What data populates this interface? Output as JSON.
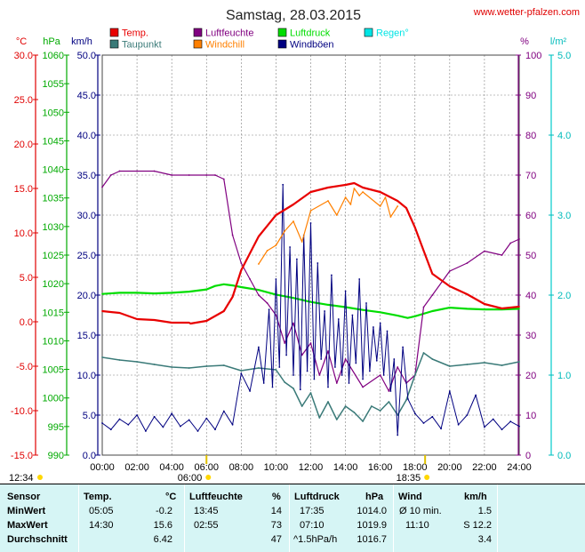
{
  "header": {
    "date_title": "Samstag, 28.03.2015",
    "site_link": "www.wetter-pfalzen.com"
  },
  "colors": {
    "temp": "#e80000",
    "taupunkt": "#3a7a78",
    "luftfeuchte": "#800080",
    "windchill": "#ff8000",
    "luftdruck": "#00dd00",
    "windboeen": "#000080",
    "regen": "#00e5e5",
    "grid": "#808080",
    "stats_bg": "#d6f5f5"
  },
  "chart_data": {
    "type": "line",
    "title": "Samstag, 28.03.2015",
    "x_unit": "hours",
    "x_range": [
      0,
      24
    ],
    "x_ticks": [
      "00:00",
      "02:00",
      "04:00",
      "06:00",
      "08:00",
      "10:00",
      "12:00",
      "14:00",
      "16:00",
      "18:00",
      "20:00",
      "22:00",
      "24:00"
    ],
    "grid": true,
    "legend_placement": "top",
    "axes": {
      "temp": {
        "unit": "°C",
        "range": [
          -15,
          30
        ],
        "ticks": [
          "30.0",
          "25.0",
          "20.0",
          "15.0",
          "10.0",
          "5.0",
          "0.0",
          "-5.0",
          "-10.0",
          "-15.0"
        ]
      },
      "pressure": {
        "unit": "hPa",
        "range": [
          990,
          1060
        ],
        "ticks": [
          "1060",
          "1055",
          "1050",
          "1045",
          "1040",
          "1035",
          "1030",
          "1025",
          "1020",
          "1015",
          "1010",
          "1005",
          "1000",
          "995",
          "990"
        ]
      },
      "wind": {
        "unit": "km/h",
        "range": [
          0,
          50
        ],
        "ticks": [
          "50.0",
          "45.0",
          "40.0",
          "35.0",
          "30.0",
          "25.0",
          "20.0",
          "15.0",
          "10.0",
          "5.0",
          "0.0"
        ]
      },
      "humidity": {
        "unit": "%",
        "range": [
          0,
          100
        ],
        "ticks": [
          "100",
          "90",
          "80",
          "70",
          "60",
          "50",
          "40",
          "30",
          "20",
          "10",
          "0"
        ]
      },
      "rain": {
        "unit": "l/m²",
        "range": [
          0,
          5
        ],
        "ticks": [
          "5.0",
          "4.0",
          "3.0",
          "2.0",
          "1.0",
          "0.0"
        ]
      }
    },
    "series": [
      {
        "name": "Temp.",
        "key": "temp",
        "axis": "temp",
        "x": [
          0,
          1,
          2,
          3,
          4,
          5,
          5.08,
          6,
          7,
          7.5,
          8,
          9,
          10,
          11,
          12,
          13,
          14,
          14.5,
          15,
          16,
          17,
          17.5,
          18,
          18.5,
          19,
          20,
          21,
          22,
          23,
          24
        ],
        "y": [
          1.2,
          1.0,
          0.3,
          0.2,
          -0.1,
          -0.1,
          -0.2,
          0.1,
          1.2,
          2.8,
          5.8,
          9.6,
          12.0,
          13.2,
          14.6,
          15.1,
          15.4,
          15.6,
          15.1,
          14.6,
          13.6,
          12.8,
          10.6,
          8.0,
          5.4,
          4.0,
          3.1,
          2.0,
          1.5,
          1.7
        ]
      },
      {
        "name": "Taupunkt",
        "key": "taupunkt",
        "axis": "temp",
        "x": [
          0,
          1,
          2,
          3,
          4,
          5,
          6,
          7,
          8,
          9,
          10,
          10.5,
          11,
          11.5,
          12,
          12.5,
          13,
          13.5,
          14,
          14.5,
          15,
          15.5,
          16,
          16.5,
          17,
          17.5,
          18,
          18.5,
          19,
          20,
          21,
          22,
          23,
          24
        ],
        "y": [
          -4.0,
          -4.3,
          -4.5,
          -4.8,
          -5.1,
          -5.2,
          -5.0,
          -4.9,
          -5.5,
          -5.2,
          -5.4,
          -6.8,
          -7.5,
          -9.5,
          -8.0,
          -10.8,
          -9.0,
          -11.0,
          -9.5,
          -10.2,
          -11.2,
          -9.5,
          -10.0,
          -9.0,
          -10.5,
          -8.8,
          -6.0,
          -3.5,
          -4.2,
          -5.0,
          -4.8,
          -4.6,
          -4.9,
          -4.5
        ]
      },
      {
        "name": "Luftfeuchte",
        "key": "luftfeuchte",
        "axis": "humidity",
        "x": [
          0,
          0.5,
          1,
          2,
          3,
          4,
          5,
          6,
          6.5,
          7,
          7.5,
          8,
          8.5,
          9,
          9.5,
          10,
          10.5,
          11,
          11.5,
          12,
          12.5,
          13,
          13.5,
          14,
          15,
          16,
          16.5,
          17,
          17.5,
          18,
          18.5,
          19,
          20,
          21,
          22,
          23,
          23.5,
          24
        ],
        "y": [
          67,
          70,
          71,
          71,
          71,
          70,
          70,
          70,
          70,
          69,
          55,
          48,
          44,
          40,
          38,
          35,
          28,
          33,
          25,
          28,
          20,
          26,
          18,
          24,
          17,
          20,
          16,
          22,
          18,
          20,
          37,
          40,
          46,
          48,
          51,
          50,
          53,
          54
        ]
      },
      {
        "name": "Luftdruck",
        "key": "luftdruck",
        "axis": "pressure",
        "x": [
          0,
          1,
          2,
          3,
          4,
          5,
          6,
          6.5,
          7,
          7.5,
          8,
          9,
          10,
          11,
          12,
          13,
          14,
          15,
          16,
          17,
          17.58,
          18,
          19,
          20,
          21,
          22,
          23,
          24
        ],
        "y": [
          1018.2,
          1018.4,
          1018.4,
          1018.3,
          1018.4,
          1018.6,
          1019.0,
          1019.6,
          1019.9,
          1019.7,
          1019.4,
          1018.9,
          1018.1,
          1017.5,
          1016.8,
          1016.3,
          1015.9,
          1015.4,
          1015.0,
          1014.4,
          1014.0,
          1014.3,
          1015.2,
          1015.8,
          1015.6,
          1015.5,
          1015.5,
          1015.6
        ]
      },
      {
        "name": "Windchill",
        "key": "windchill",
        "axis": "temp",
        "x": [
          9,
          9.5,
          10,
          10.5,
          11,
          11.5,
          12,
          13,
          13.5,
          14,
          14.3,
          14.5,
          14.8,
          15,
          16,
          16.3,
          16.6,
          17
        ],
        "y": [
          6.5,
          8.0,
          8.6,
          10.2,
          11.3,
          9.0,
          12.5,
          13.6,
          12.0,
          14.0,
          13.2,
          15.0,
          14.2,
          14.6,
          13.0,
          14.0,
          11.8,
          13.0
        ]
      },
      {
        "name": "Windböen",
        "key": "windboeen",
        "axis": "wind",
        "x": [
          0,
          0.5,
          1,
          1.5,
          2,
          2.5,
          3,
          3.5,
          4,
          4.5,
          5,
          5.5,
          6,
          6.5,
          7,
          7.5,
          8,
          8.5,
          9,
          9.3,
          9.6,
          9.8,
          10,
          10.2,
          10.4,
          10.6,
          10.8,
          11,
          11.2,
          11.4,
          11.6,
          11.8,
          12,
          12.2,
          12.4,
          12.6,
          12.8,
          13,
          13.2,
          13.4,
          13.6,
          13.8,
          14,
          14.2,
          14.4,
          14.6,
          14.8,
          15,
          15.2,
          15.4,
          15.6,
          15.8,
          16,
          16.2,
          16.4,
          16.6,
          16.8,
          17,
          17.3,
          17.6,
          18,
          18.5,
          19,
          19.5,
          20,
          20.5,
          21,
          21.5,
          22,
          22.5,
          23,
          23.5,
          24
        ],
        "y": [
          4,
          3.2,
          4.5,
          3.8,
          5.0,
          3.0,
          4.8,
          3.5,
          5.2,
          3.6,
          4.4,
          3.0,
          4.6,
          3.2,
          5.5,
          3.8,
          10.2,
          8.0,
          13.5,
          9.0,
          18.2,
          8.5,
          22.0,
          11.0,
          33.8,
          12.5,
          26.0,
          10.0,
          24.5,
          8.2,
          27.5,
          10.5,
          29.0,
          9.5,
          24.0,
          12.0,
          18.0,
          8.5,
          22.5,
          11.0,
          17.0,
          10.0,
          20.5,
          9.0,
          17.5,
          11.5,
          22.0,
          9.5,
          19.0,
          10.5,
          16.0,
          11.8,
          16.5,
          10.0,
          15.5,
          8.0,
          12.0,
          2.5,
          13.5,
          7.0,
          5.2,
          4.0,
          4.8,
          3.3,
          8.0,
          3.8,
          5.0,
          7.5,
          3.5,
          4.5,
          3.2,
          4.2,
          3.6
        ]
      }
    ],
    "markers": {
      "sunrise": "06:00",
      "sunset": "18:35",
      "daylength": "12:34"
    }
  },
  "legend": [
    {
      "label": "Temp.",
      "color_key": "temp"
    },
    {
      "label": "Luftfeuchte",
      "color_key": "luftfeuchte"
    },
    {
      "label": "Luftdruck",
      "color_key": "luftdruck"
    },
    {
      "label": "Regen°",
      "color_key": "regen"
    },
    {
      "label": "Taupunkt",
      "color_key": "taupunkt"
    },
    {
      "label": "Windchill",
      "color_key": "windchill"
    },
    {
      "label": "Windböen",
      "color_key": "windboeen"
    }
  ],
  "stats": {
    "headers": {
      "sensor": "Sensor",
      "temp": "Temp.",
      "temp_unit": "°C",
      "hum": "Luftfeuchte",
      "hum_unit": "%",
      "press": "Luftdruck",
      "press_unit": "hPa",
      "wind": "Wind",
      "wind_unit": "km/h"
    },
    "rows": [
      {
        "label": "MinWert",
        "temp_time": "05:05",
        "temp_val": "-0.2",
        "hum_time": "13:45",
        "hum_val": "14",
        "press_time": "17:35",
        "press_val": "1014.0",
        "wind_time": "Ø 10 min.",
        "wind_val": "1.5"
      },
      {
        "label": "MaxWert",
        "temp_time": "14:30",
        "temp_val": "15.6",
        "hum_time": "02:55",
        "hum_val": "73",
        "press_time": "07:10",
        "press_val": "1019.9",
        "wind_time": "11:10",
        "wind_val": "S 12.2"
      },
      {
        "label": "Durchschnitt",
        "temp_time": "",
        "temp_val": "6.42",
        "hum_time": "",
        "hum_val": "47",
        "press_time": "^1.5hPa/h",
        "press_val": "1016.7",
        "wind_time": "",
        "wind_val": "3.4"
      }
    ]
  }
}
